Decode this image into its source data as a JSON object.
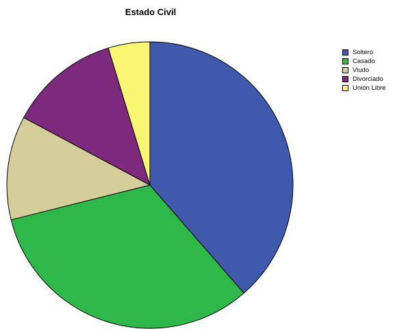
{
  "chart_data": {
    "type": "pie",
    "title": "Estado Civil",
    "legend_position": "right",
    "start_angle": "top",
    "direction": "clockwise",
    "slices": [
      {
        "label": "Soltero",
        "value": 38.6,
        "color": "#3f5aac"
      },
      {
        "label": "Casado",
        "value": 32.5,
        "color": "#2fb84a"
      },
      {
        "label": "Viudo",
        "value": 11.7,
        "color": "#d4cf9a"
      },
      {
        "label": "Divorciado",
        "value": 12.5,
        "color": "#7e2a7c"
      },
      {
        "label": "Unión Libre",
        "value": 4.7,
        "color": "#f9f674"
      }
    ]
  }
}
